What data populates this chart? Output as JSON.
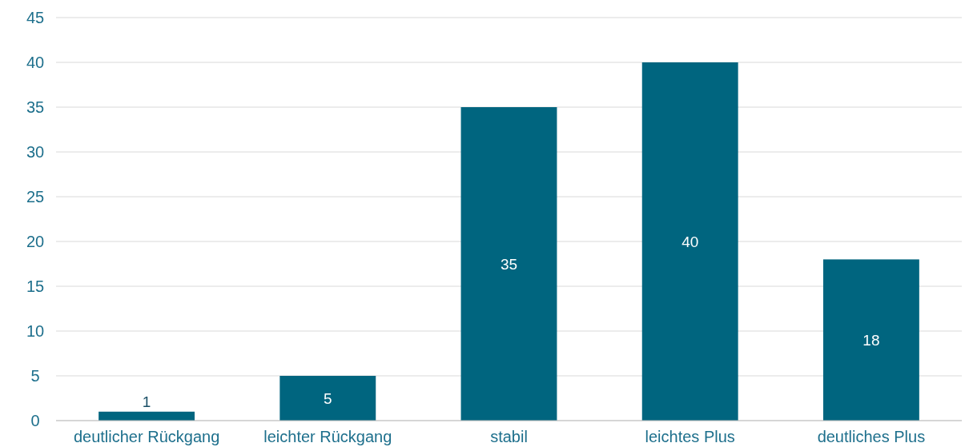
{
  "chart_data": {
    "type": "bar",
    "categories": [
      "deutlicher Rückgang",
      "leichter Rückgang",
      "stabil",
      "leichtes Plus",
      "deutliches Plus"
    ],
    "values": [
      1,
      5,
      35,
      40,
      18
    ],
    "color": "#00657f",
    "ylim": [
      0,
      45
    ],
    "yticks": [
      0,
      5,
      10,
      15,
      20,
      25,
      30,
      35,
      40,
      45
    ],
    "grid": "y",
    "data_labels": true
  }
}
